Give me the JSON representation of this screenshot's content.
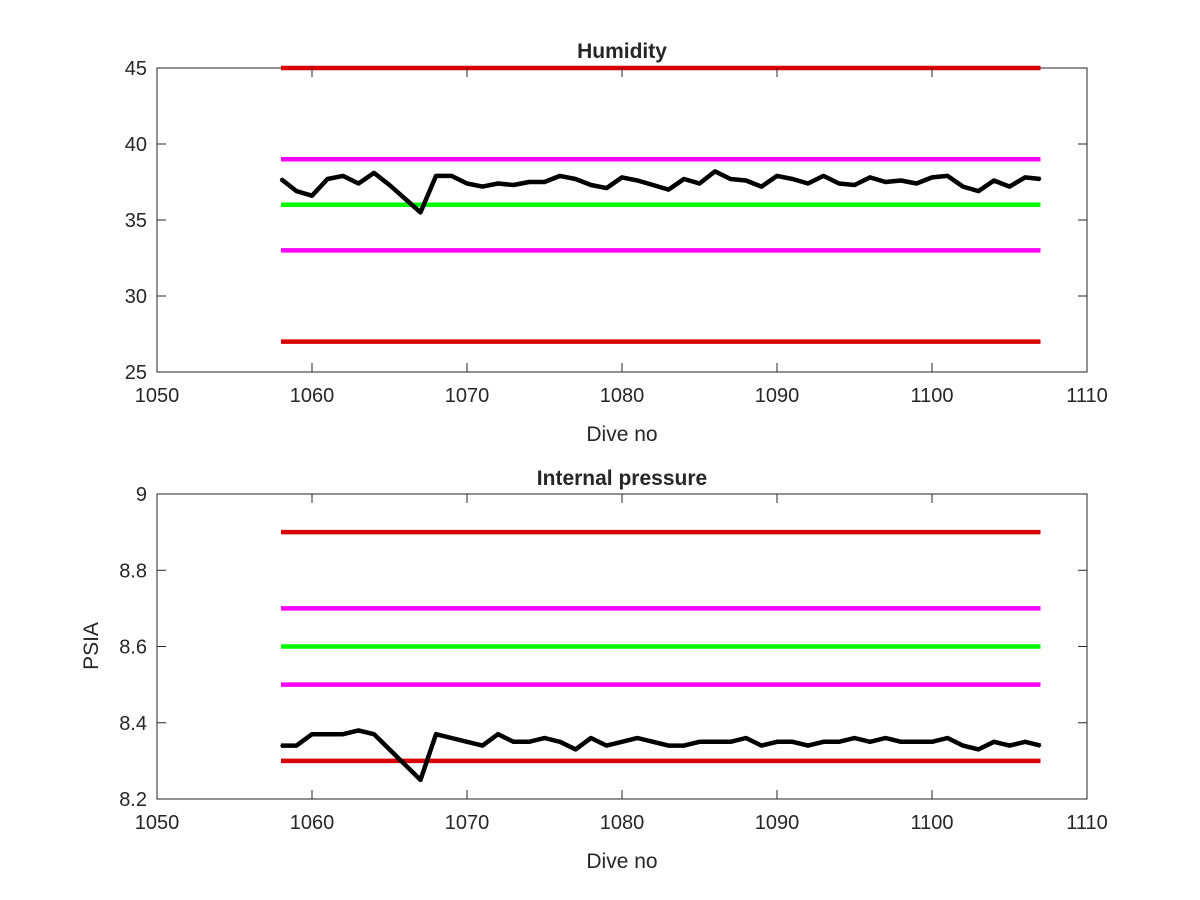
{
  "chart_data": [
    {
      "type": "line",
      "title": "Humidity",
      "xlabel": "Dive no",
      "ylabel": "",
      "xlim": [
        1050,
        1110
      ],
      "ylim": [
        25,
        45
      ],
      "xticks": [
        "1050",
        "1060",
        "1070",
        "1080",
        "1090",
        "1100",
        "1110"
      ],
      "yticks": [
        "25",
        "30",
        "35",
        "40",
        "45"
      ],
      "grid": false,
      "x": [
        1058,
        1059,
        1060,
        1061,
        1062,
        1063,
        1064,
        1065,
        1066,
        1067,
        1068,
        1069,
        1070,
        1071,
        1072,
        1073,
        1074,
        1075,
        1076,
        1077,
        1078,
        1079,
        1080,
        1081,
        1082,
        1083,
        1084,
        1085,
        1086,
        1087,
        1088,
        1089,
        1090,
        1091,
        1092,
        1093,
        1094,
        1095,
        1096,
        1097,
        1098,
        1099,
        1100,
        1101,
        1102,
        1103,
        1104,
        1105,
        1106,
        1107
      ],
      "series": [
        {
          "color": "#000000",
          "values": [
            37.7,
            36.9,
            36.6,
            37.7,
            37.9,
            37.4,
            38.1,
            37.3,
            36.4,
            35.5,
            37.9,
            37.9,
            37.4,
            37.2,
            37.4,
            37.3,
            37.5,
            37.5,
            37.9,
            37.7,
            37.3,
            37.1,
            37.8,
            37.6,
            37.3,
            37.0,
            37.7,
            37.4,
            38.2,
            37.7,
            37.6,
            37.2,
            37.9,
            37.7,
            37.4,
            37.9,
            37.4,
            37.3,
            37.8,
            37.5,
            37.6,
            37.4,
            37.8,
            37.9,
            37.2,
            36.9,
            37.6,
            37.2,
            37.8,
            37.7
          ]
        }
      ],
      "reference_lines": [
        {
          "y": 45,
          "x": [
            1058,
            1107
          ],
          "color": "#d80000"
        },
        {
          "y": 39,
          "x": [
            1058,
            1107
          ],
          "color": "#ff00ff"
        },
        {
          "y": 36,
          "x": [
            1058,
            1107
          ],
          "color": "#00ff00"
        },
        {
          "y": 33,
          "x": [
            1058,
            1107
          ],
          "color": "#ff00ff"
        },
        {
          "y": 27,
          "x": [
            1058,
            1107
          ],
          "color": "#d80000"
        }
      ]
    },
    {
      "type": "line",
      "title": "Internal pressure",
      "xlabel": "Dive no",
      "ylabel": "PSIA",
      "xlim": [
        1050,
        1110
      ],
      "ylim": [
        8.2,
        9
      ],
      "xticks": [
        "1050",
        "1060",
        "1070",
        "1080",
        "1090",
        "1100",
        "1110"
      ],
      "yticks": [
        "8.2",
        "8.4",
        "8.6",
        "8.8",
        "9"
      ],
      "grid": false,
      "x": [
        1058,
        1059,
        1060,
        1061,
        1062,
        1063,
        1064,
        1065,
        1066,
        1067,
        1068,
        1069,
        1070,
        1071,
        1072,
        1073,
        1074,
        1075,
        1076,
        1077,
        1078,
        1079,
        1080,
        1081,
        1082,
        1083,
        1084,
        1085,
        1086,
        1087,
        1088,
        1089,
        1090,
        1091,
        1092,
        1093,
        1094,
        1095,
        1096,
        1097,
        1098,
        1099,
        1100,
        1101,
        1102,
        1103,
        1104,
        1105,
        1106,
        1107
      ],
      "series": [
        {
          "color": "#000000",
          "values": [
            8.34,
            8.34,
            8.37,
            8.37,
            8.37,
            8.38,
            8.37,
            8.33,
            8.29,
            8.25,
            8.37,
            8.36,
            8.35,
            8.34,
            8.37,
            8.35,
            8.35,
            8.36,
            8.35,
            8.33,
            8.36,
            8.34,
            8.35,
            8.36,
            8.35,
            8.34,
            8.34,
            8.35,
            8.35,
            8.35,
            8.36,
            8.34,
            8.35,
            8.35,
            8.34,
            8.35,
            8.35,
            8.36,
            8.35,
            8.36,
            8.35,
            8.35,
            8.35,
            8.36,
            8.34,
            8.33,
            8.35,
            8.34,
            8.35,
            8.34
          ]
        }
      ],
      "reference_lines": [
        {
          "y": 8.9,
          "x": [
            1058,
            1107
          ],
          "color": "#d80000"
        },
        {
          "y": 8.7,
          "x": [
            1058,
            1107
          ],
          "color": "#ff00ff"
        },
        {
          "y": 8.6,
          "x": [
            1058,
            1107
          ],
          "color": "#00ff00"
        },
        {
          "y": 8.5,
          "x": [
            1058,
            1107
          ],
          "color": "#ff00ff"
        },
        {
          "y": 8.3,
          "x": [
            1058,
            1107
          ],
          "color": "#d80000"
        }
      ]
    }
  ]
}
